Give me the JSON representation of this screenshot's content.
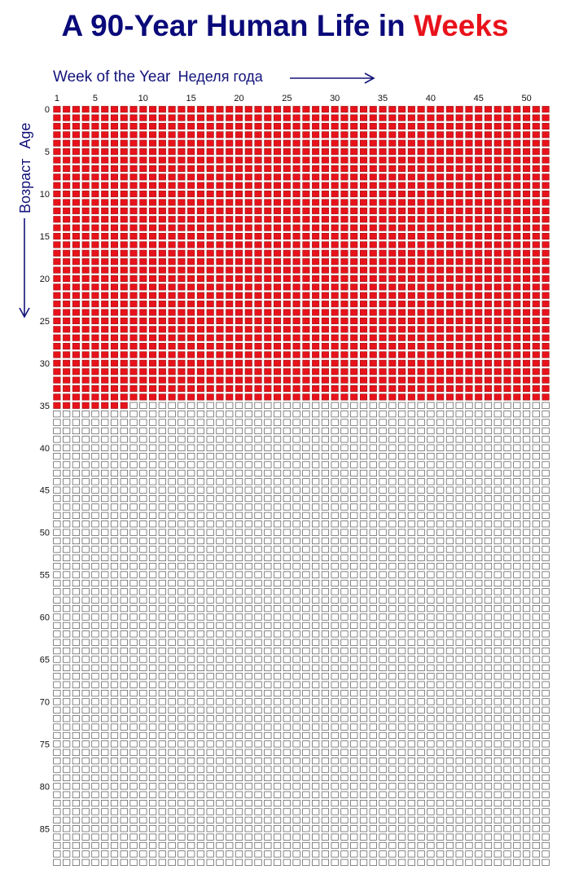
{
  "chart_data": {
    "type": "heatmap",
    "title_main": "A 90-Year Human Life in ",
    "title_accent": "Weeks",
    "xlabel": "Week of the Year",
    "xlabel_ru": "Неделя года",
    "ylabel": "Age",
    "ylabel_ru": "Возраст",
    "weeks_per_year": 52,
    "years": 90,
    "x_tick_labels": [
      1,
      5,
      10,
      15,
      20,
      25,
      30,
      35,
      40,
      45,
      50
    ],
    "y_tick_labels": [
      0,
      5,
      10,
      15,
      20,
      25,
      30,
      35,
      40,
      45,
      50,
      55,
      60,
      65,
      70,
      75,
      80,
      85
    ],
    "filled_years": 35,
    "filled_weeks_in_next_year": 8,
    "filled_color": "#e8121b",
    "filled_border_color": "#9a0f12",
    "empty_border_color": "#555555",
    "title_color": "#0a0a7a",
    "accent_color": "#e8121b"
  }
}
